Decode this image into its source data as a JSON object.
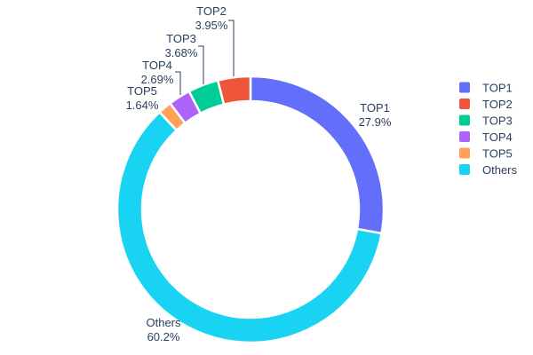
{
  "chart_data": {
    "type": "pie",
    "subtype": "donut",
    "title": "",
    "categories": [
      "TOP1",
      "TOP2",
      "TOP3",
      "TOP4",
      "TOP5",
      "Others"
    ],
    "values": [
      27.9,
      3.95,
      3.68,
      2.69,
      1.64,
      60.2
    ],
    "pct_labels": [
      "27.9%",
      "3.95%",
      "3.68%",
      "2.69%",
      "1.64%",
      "60.2%"
    ],
    "colors": [
      "#636EFA",
      "#EF553B",
      "#00CC96",
      "#AB63FA",
      "#FFA15A",
      "#19D3F3"
    ],
    "hole": 0.81,
    "slice_gap_color": "#ffffff",
    "text_color": "#2a3f5f",
    "background": "#ffffff",
    "legend": {
      "position": "right",
      "entries": [
        "TOP1",
        "TOP2",
        "TOP3",
        "TOP4",
        "TOP5",
        "Others"
      ]
    }
  }
}
